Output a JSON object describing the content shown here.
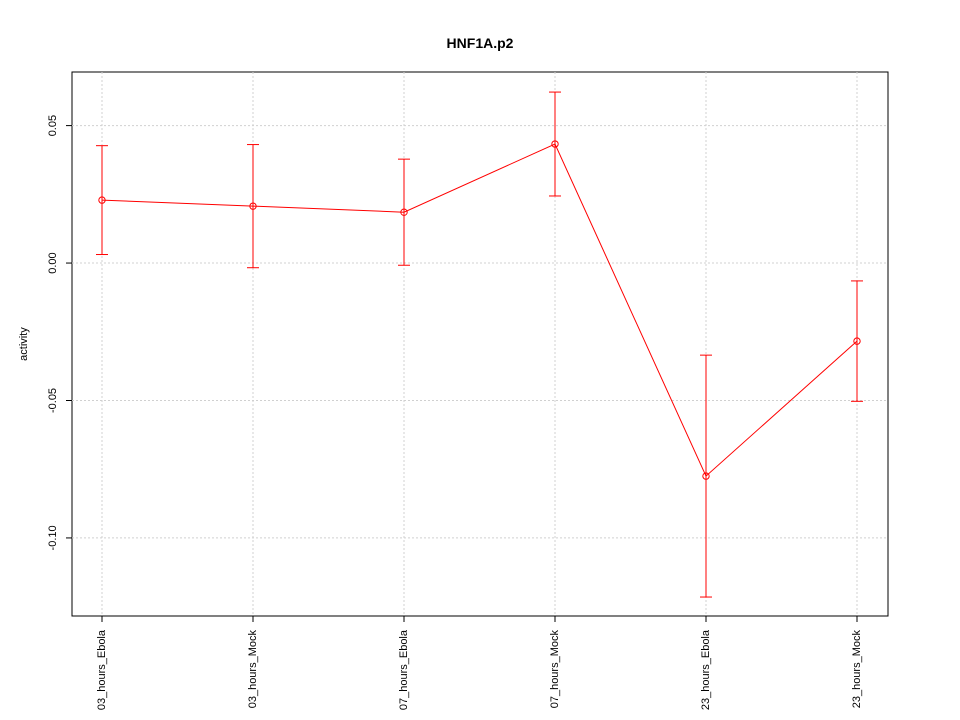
{
  "chart_data": {
    "type": "line",
    "title": "HNF1A.p2",
    "y_label": "activity",
    "categories": [
      "03_hours_Ebola",
      "03_hours_Mock",
      "07_hours_Ebola",
      "07_hours_Mock",
      "23_hours_Ebola",
      "23_hours_Mock"
    ],
    "series": [
      {
        "color": "#ff0000",
        "values": [
          0.0229,
          0.0207,
          0.0185,
          0.0433,
          -0.0775,
          -0.0284
        ],
        "errors": [
          0.0198,
          0.0224,
          0.0193,
          0.0189,
          0.044,
          0.0219
        ]
      }
    ],
    "ylim": [
      -0.1284,
      0.0695
    ],
    "yticks": [
      {
        "value": -0.1,
        "label": "-0.10"
      },
      -0.05,
      {
        "value": 0,
        "label": "0.00"
      },
      0.05
    ],
    "grid": true
  }
}
